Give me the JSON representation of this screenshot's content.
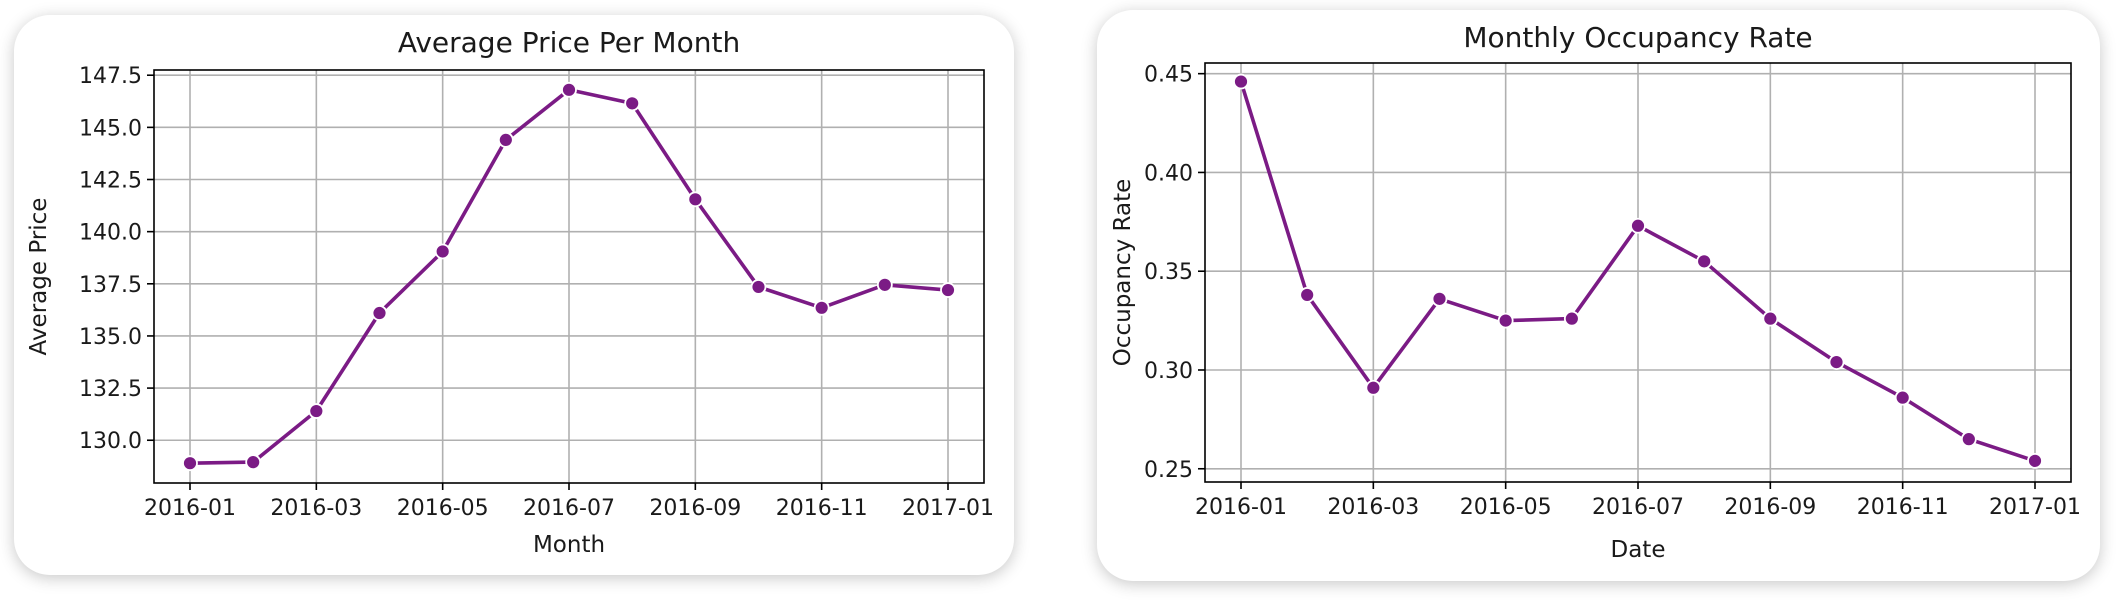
{
  "colors": {
    "series": "#7b1b85"
  },
  "chart_data": [
    {
      "type": "line",
      "title": "Average Price Per Month",
      "xlabel": "Month",
      "ylabel": "Average Price",
      "x": [
        "2016-01",
        "2016-02",
        "2016-03",
        "2016-04",
        "2016-05",
        "2016-06",
        "2016-07",
        "2016-08",
        "2016-09",
        "2016-10",
        "2016-11",
        "2016-12",
        "2017-01"
      ],
      "values": [
        128.9,
        128.95,
        131.4,
        136.1,
        139.05,
        144.4,
        146.8,
        146.15,
        141.55,
        137.35,
        136.35,
        137.45,
        137.2
      ],
      "xticks": [
        "2016-01",
        "2016-03",
        "2016-05",
        "2016-07",
        "2016-09",
        "2016-11",
        "2017-01"
      ],
      "yticks": [
        "130.0",
        "132.5",
        "135.0",
        "137.5",
        "140.0",
        "142.5",
        "145.0",
        "147.5"
      ],
      "ylim": [
        127.95,
        147.75
      ],
      "grid": true,
      "marker": "circle"
    },
    {
      "type": "line",
      "title": "Monthly Occupancy Rate",
      "xlabel": "Date",
      "ylabel": "Occupancy Rate",
      "x": [
        "2016-01",
        "2016-02",
        "2016-03",
        "2016-04",
        "2016-05",
        "2016-06",
        "2016-07",
        "2016-08",
        "2016-09",
        "2016-10",
        "2016-11",
        "2016-12",
        "2017-01"
      ],
      "values": [
        0.446,
        0.338,
        0.291,
        0.336,
        0.325,
        0.326,
        0.373,
        0.355,
        0.326,
        0.304,
        0.286,
        0.265,
        0.254
      ],
      "xticks": [
        "2016-01",
        "2016-03",
        "2016-05",
        "2016-07",
        "2016-09",
        "2016-11",
        "2017-01"
      ],
      "yticks": [
        "0.25",
        "0.30",
        "0.35",
        "0.40",
        "0.45"
      ],
      "ylim": [
        0.2433,
        0.4554
      ],
      "grid": true,
      "marker": "circle"
    }
  ]
}
